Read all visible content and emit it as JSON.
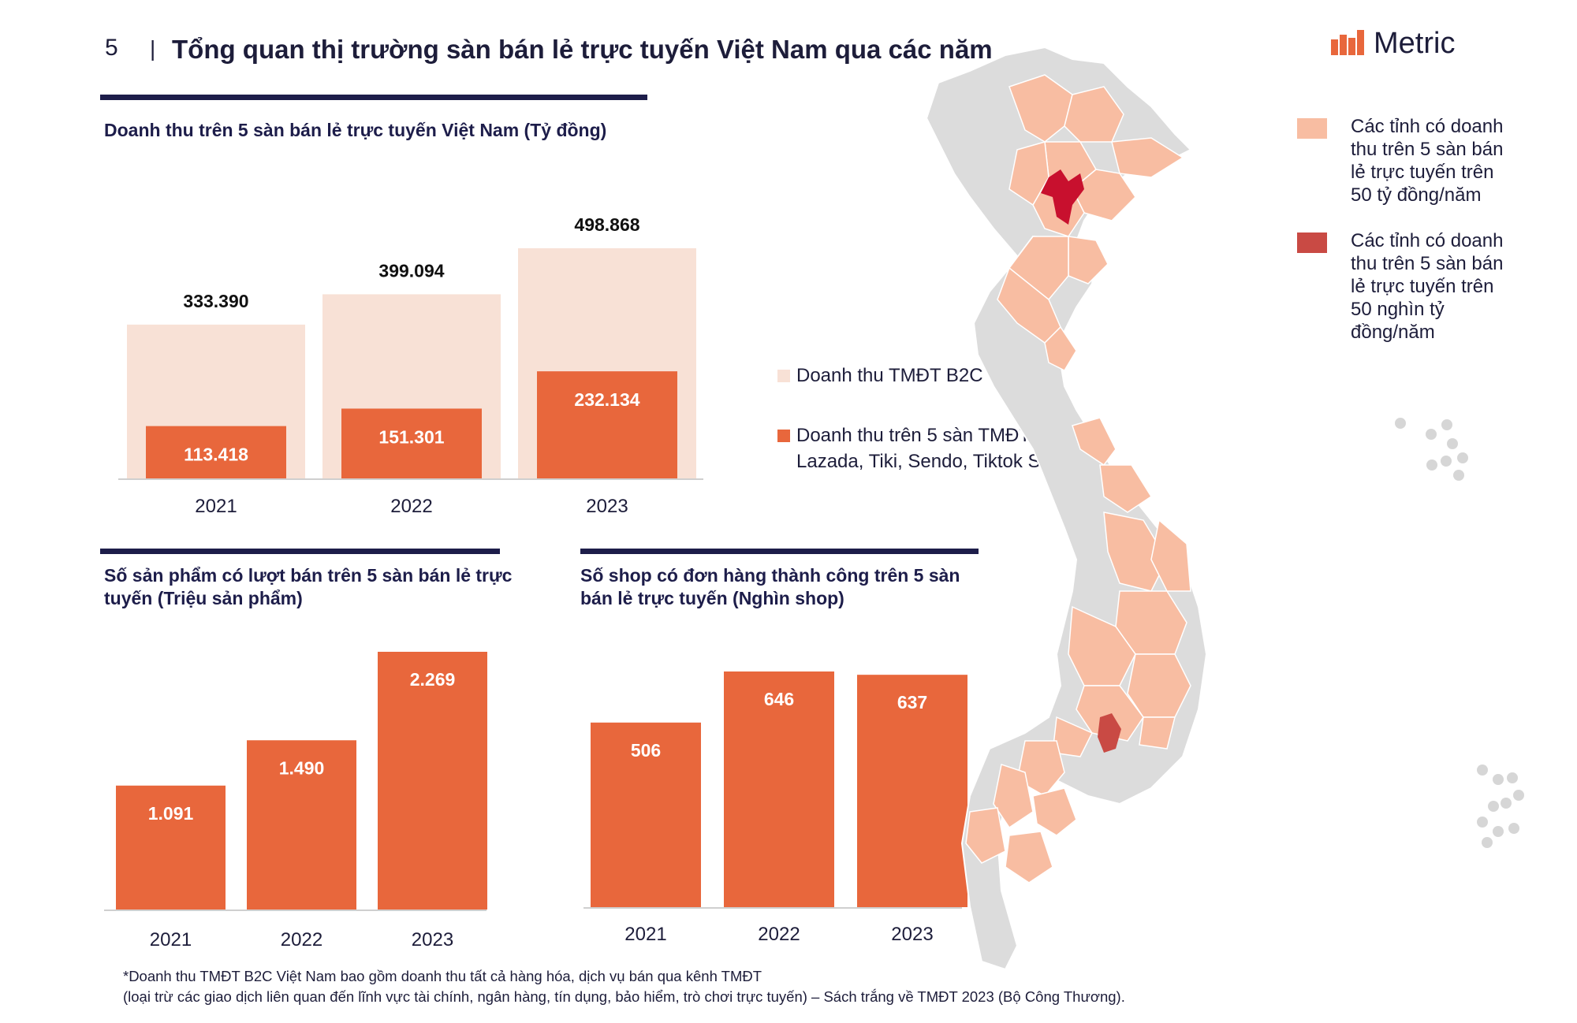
{
  "header": {
    "page_number": "5",
    "separator": "|",
    "title": "Tổng quan thị trường sàn bán lẻ trực tuyến Việt Nam qua các năm",
    "logo_text": "Metric"
  },
  "colors": {
    "navy": "#1d1d4a",
    "accent_orange": "#e8673c",
    "light_peach": "#f8e1d6",
    "province_fill": "#f8bda2",
    "province_dark": "#c8102e",
    "province_medium": "#c94a44",
    "land_gray": "#dcdcdc"
  },
  "chart_data": [
    {
      "type": "bar",
      "title": "Doanh thu trên 5 sàn bán lẻ trực tuyến Việt Nam (Tỷ đồng)",
      "categories": [
        "2021",
        "2022",
        "2023"
      ],
      "series": [
        {
          "name": "Doanh thu TMĐT B2C",
          "values": [
            333390,
            399094,
            498868
          ],
          "labels": [
            "333.390",
            "399.094",
            "498.868"
          ],
          "color": "#f8e1d6"
        },
        {
          "name": "Doanh thu trên 5 sàn TMĐT (Shopee, Lazada, Tiki, Sendo, Tiktok Shop)",
          "values": [
            113418,
            151301,
            232134
          ],
          "labels": [
            "113.418",
            "151.301",
            "232.134"
          ],
          "color": "#e8673c"
        }
      ],
      "ylim": [
        0,
        498868
      ],
      "legend": "right",
      "grid": false
    },
    {
      "type": "bar",
      "title": "Số sản phẩm có lượt bán trên 5 sàn bán lẻ trực tuyến (Triệu sản phẩm)",
      "categories": [
        "2021",
        "2022",
        "2023"
      ],
      "values": [
        1.091,
        1.49,
        2.269
      ],
      "labels": [
        "1.091",
        "1.490",
        "2.269"
      ],
      "ylim": [
        0,
        2.269
      ],
      "grid": false
    },
    {
      "type": "bar",
      "title": "Số shop có đơn hàng thành công trên 5 sàn bán lẻ trực tuyến (Nghìn shop)",
      "categories": [
        "2021",
        "2022",
        "2023"
      ],
      "values": [
        506,
        646,
        637
      ],
      "labels": [
        "506",
        "646",
        "637"
      ],
      "ylim": [
        0,
        646
      ],
      "grid": false
    }
  ],
  "map_legend": [
    {
      "text": "Các tỉnh có doanh thu trên 5 sàn bán lẻ trực tuyến trên 50 tỷ đồng/năm",
      "color": "#f8bda2"
    },
    {
      "text": "Các tỉnh có doanh thu trên 5 sàn bán lẻ trực tuyến trên 50 nghìn tỷ đồng/năm",
      "color": "#c94a44"
    }
  ],
  "footnote": {
    "line1": "*Doanh thu TMĐT B2C Việt Nam bao gồm doanh thu tất cả hàng hóa, dịch vụ bán qua kênh TMĐT",
    "line2": "(loại trừ các giao dịch liên quan đến lĩnh vực tài chính, ngân hàng, tín dụng, bảo hiểm, trò chơi trực tuyến) – Sách trắng về TMĐT 2023 (Bộ Công Thương)."
  }
}
